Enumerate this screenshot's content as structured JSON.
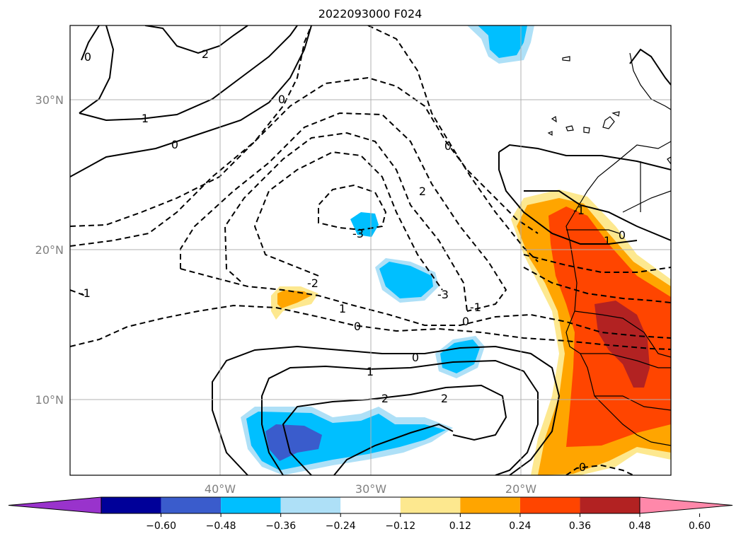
{
  "title": "2022093000 F024",
  "map": {
    "lat_labels": [
      "30°N",
      "20°N",
      "10°N"
    ],
    "lon_labels": [
      "40°W",
      "30°W",
      "20°W"
    ],
    "contour_labels": [
      "0",
      "2",
      "1",
      "0",
      "0",
      "0",
      "2",
      "-3",
      "-2",
      "-3",
      "-1",
      "0",
      "-1",
      "1",
      "0",
      "0",
      "1",
      "2",
      "2",
      "-1",
      "1",
      "0",
      "0"
    ],
    "shading_palette": {
      "purple": "#9933cc",
      "navy": "#000099",
      "royal_blue": "#3a5ccc",
      "deep_sky_blue": "#00bfff",
      "light_sky_blue": "#aee0f7",
      "khaki": "#fde88f",
      "orange": "#ffa500",
      "orange_red": "#ff4500",
      "firebrick": "#b22222",
      "pink": "#ff88aa"
    },
    "contour_color": "#000000"
  },
  "colorbar": {
    "ticks": [
      "−0.60",
      "−0.48",
      "−0.36",
      "−0.24",
      "−0.12",
      "0.12",
      "0.24",
      "0.36",
      "0.48",
      "0.60"
    ],
    "colors": [
      "#9933cc",
      "#000099",
      "#3a5ccc",
      "#00bfff",
      "#aee0f7",
      "#ffffff",
      "#fde88f",
      "#ffa500",
      "#ff4500",
      "#b22222",
      "#ff88aa"
    ],
    "extend": "both"
  }
}
